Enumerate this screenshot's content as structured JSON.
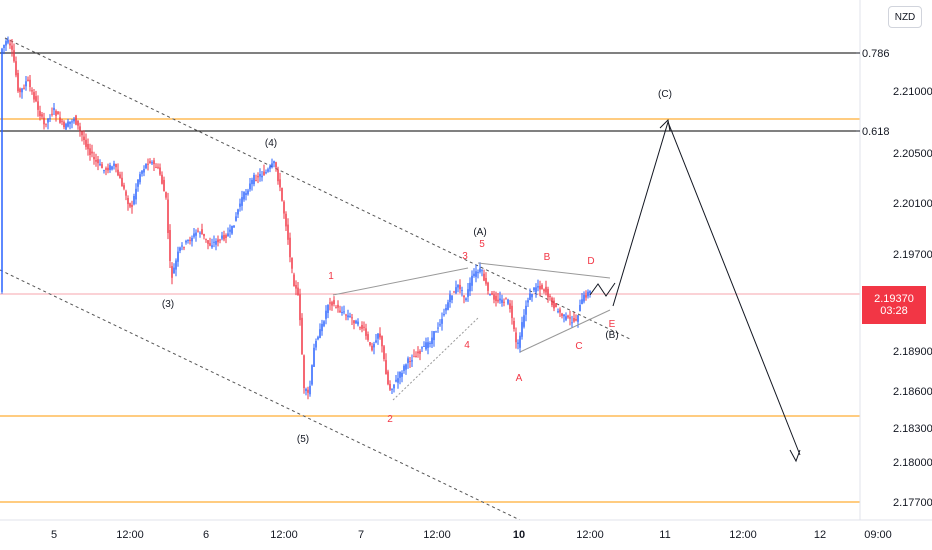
{
  "currency": "NZD",
  "last_price": "2.19370",
  "countdown": "03:28",
  "fib_labels": [
    "0.786",
    "0.618"
  ],
  "price_ticks": [
    "2.21000",
    "2.20500",
    "2.20100",
    "2.19700",
    "2.18900",
    "2.18600",
    "2.18300",
    "2.18000",
    "2.17700"
  ],
  "time_ticks": [
    "5",
    "12:00",
    "6",
    "12:00",
    "7",
    "12:00",
    "10",
    "12:00",
    "11",
    "12:00",
    "12",
    "09:00"
  ],
  "wave_labels": {
    "w3": "(3)",
    "w4": "(4)",
    "w5": "(5)",
    "wA": "(A)",
    "wB": "(B)",
    "wC": "(C)",
    "s1": "1",
    "s2": "2",
    "s3": "3",
    "s4": "4",
    "s5": "5",
    "tA": "A",
    "tB": "B",
    "tC": "C",
    "tD": "D",
    "tE": "E"
  },
  "colors": {
    "up": "#2962ff",
    "down": "#f23645",
    "orange_level": "#ff9800",
    "black_level": "#000000",
    "red_label": "#f23645"
  },
  "chart_data": {
    "type": "candlestick",
    "y_axis": {
      "scale": "linear",
      "position": "right"
    },
    "horizontal_levels": [
      {
        "label": "0.786",
        "color": "#000000"
      },
      {
        "label": "0.618",
        "color": "#000000"
      },
      {
        "label": "",
        "color": "#ff9800"
      },
      {
        "label": "",
        "color": "#ff9800"
      },
      {
        "label": "",
        "color": "#ff9800"
      }
    ],
    "last_price": 2.1937,
    "annotations": [
      "(3)",
      "(4)",
      "(5)",
      "(A)",
      "(B)",
      "(C)",
      "1",
      "2",
      "3",
      "4",
      "5",
      "A",
      "B",
      "C",
      "D",
      "E"
    ]
  }
}
